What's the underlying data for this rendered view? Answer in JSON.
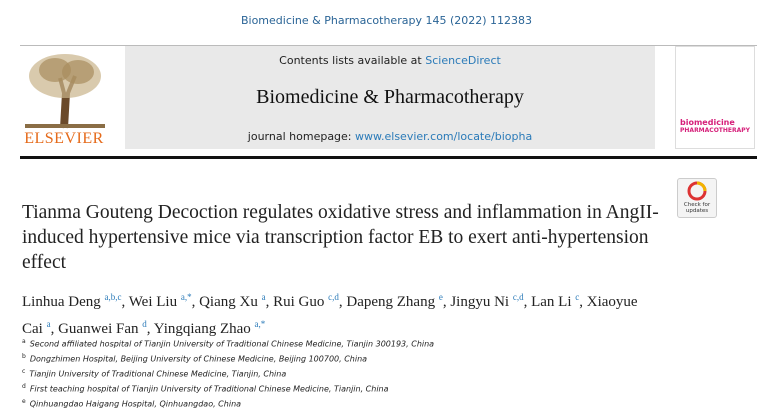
{
  "header": {
    "citation": "Biomedicine & Pharmacotherapy 145 (2022) 112383",
    "contents_prefix": "Contents lists available at ",
    "contents_link": "ScienceDirect",
    "journal_name": "Biomedicine & Pharmacotherapy",
    "homepage_prefix": "journal homepage: ",
    "homepage_link": "www.elsevier.com/locate/biopha",
    "publisher": "ELSEVIER",
    "cover_title": "biomedicine",
    "cover_subtitle": "PHARMACOTHERAPY",
    "badge": "Check for updates"
  },
  "article": {
    "title": "Tianma Gouteng Decoction regulates oxidative stress and inflammation in AngII-induced hypertensive mice via transcription factor EB to exert anti-hypertension effect",
    "authors": [
      {
        "name": "Linhua Deng",
        "affil": "a,b,c"
      },
      {
        "name": "Wei Liu",
        "affil": "a,*"
      },
      {
        "name": "Qiang Xu",
        "affil": "a"
      },
      {
        "name": "Rui Guo",
        "affil": "c,d"
      },
      {
        "name": "Dapeng Zhang",
        "affil": "e"
      },
      {
        "name": "Jingyu Ni",
        "affil": "c,d"
      },
      {
        "name": "Lan Li",
        "affil": "c"
      },
      {
        "name": "Xiaoyue Cai",
        "affil": "a"
      },
      {
        "name": "Guanwei Fan",
        "affil": "d"
      },
      {
        "name": "Yingqiang Zhao",
        "affil": "a,*"
      }
    ],
    "affiliations": [
      {
        "mark": "a",
        "text": "Second affiliated hospital of Tianjin University of Traditional Chinese Medicine, Tianjin 300193, China"
      },
      {
        "mark": "b",
        "text": "Dongzhimen Hospital, Beijing University of Chinese Medicine, Beijing 100700, China"
      },
      {
        "mark": "c",
        "text": "Tianjin University of Traditional Chinese Medicine, Tianjin, China"
      },
      {
        "mark": "d",
        "text": "First teaching hospital of Tianjin University of Traditional Chinese Medicine, Tianjin, China"
      },
      {
        "mark": "e",
        "text": "Qinhuangdao Haigang Hospital, Qinhuangdao, China"
      }
    ]
  }
}
